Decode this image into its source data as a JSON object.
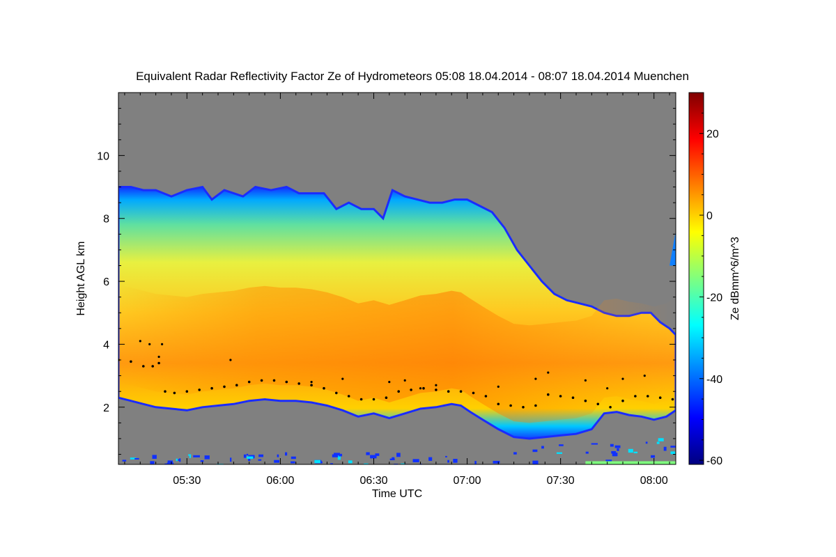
{
  "chart_data": {
    "type": "heatmap",
    "title": "Equivalent Radar Reflectivity Factor Ze of Hydrometeors   05:08 18.04.2014 - 08:07 18.04.2014 Muenchen",
    "xlabel": "Time UTC",
    "ylabel": "Height AGL km",
    "colorbar_label": "Ze dBmm^6/m^3",
    "x_range_minutes_utc": [
      308,
      487
    ],
    "x_ticks": [
      {
        "label": "05:30",
        "minutes": 330
      },
      {
        "label": "06:00",
        "minutes": 360
      },
      {
        "label": "06:30",
        "minutes": 390
      },
      {
        "label": "07:00",
        "minutes": 420
      },
      {
        "label": "07:30",
        "minutes": 450
      },
      {
        "label": "08:00",
        "minutes": 480
      }
    ],
    "y_range_km": [
      0.18,
      12.0
    ],
    "y_ticks": [
      {
        "label": "2",
        "value": 2
      },
      {
        "label": "4",
        "value": 4
      },
      {
        "label": "6",
        "value": 6
      },
      {
        "label": "8",
        "value": 8
      },
      {
        "label": "10",
        "value": 10
      }
    ],
    "colorbar_range": [
      -61,
      30
    ],
    "colorbar_ticks": [
      {
        "label": "20",
        "value": 20
      },
      {
        "label": "0",
        "value": 0
      },
      {
        "label": "-20",
        "value": -20
      },
      {
        "label": "-40",
        "value": -40
      },
      {
        "label": "-60",
        "value": -60
      }
    ],
    "colormap": [
      "#00007f",
      "#0000ff",
      "#007fff",
      "#00ffff",
      "#7fff7f",
      "#ffff00",
      "#ff7f00",
      "#ff0000",
      "#7f0000"
    ],
    "no_data_color": "#808080",
    "cloud_top_km": [
      [
        308,
        9.0
      ],
      [
        312,
        9.0
      ],
      [
        316,
        8.9
      ],
      [
        320,
        8.9
      ],
      [
        325,
        8.7
      ],
      [
        330,
        8.9
      ],
      [
        335,
        9.0
      ],
      [
        338,
        8.6
      ],
      [
        342,
        8.9
      ],
      [
        348,
        8.7
      ],
      [
        352,
        9.0
      ],
      [
        357,
        8.9
      ],
      [
        362,
        9.0
      ],
      [
        366,
        8.8
      ],
      [
        370,
        8.8
      ],
      [
        374,
        8.8
      ],
      [
        378,
        8.3
      ],
      [
        382,
        8.5
      ],
      [
        386,
        8.3
      ],
      [
        390,
        8.3
      ],
      [
        393,
        8.0
      ],
      [
        396,
        8.9
      ],
      [
        400,
        8.7
      ],
      [
        404,
        8.6
      ],
      [
        408,
        8.5
      ],
      [
        412,
        8.5
      ],
      [
        416,
        8.6
      ],
      [
        420,
        8.6
      ],
      [
        424,
        8.4
      ],
      [
        428,
        8.2
      ],
      [
        432,
        7.7
      ],
      [
        436,
        7.0
      ],
      [
        440,
        6.5
      ],
      [
        444,
        6.0
      ],
      [
        448,
        5.6
      ],
      [
        452,
        5.4
      ],
      [
        456,
        5.3
      ],
      [
        460,
        5.2
      ],
      [
        464,
        5.0
      ],
      [
        468,
        4.9
      ],
      [
        472,
        4.9
      ],
      [
        476,
        5.0
      ],
      [
        479,
        5.0
      ],
      [
        482,
        4.7
      ],
      [
        485,
        4.5
      ],
      [
        487,
        4.3
      ]
    ],
    "cloud_base_km": [
      [
        308,
        2.3
      ],
      [
        312,
        2.2
      ],
      [
        316,
        2.1
      ],
      [
        320,
        2.0
      ],
      [
        325,
        1.95
      ],
      [
        330,
        1.9
      ],
      [
        335,
        2.0
      ],
      [
        340,
        2.05
      ],
      [
        345,
        2.1
      ],
      [
        350,
        2.2
      ],
      [
        355,
        2.25
      ],
      [
        360,
        2.2
      ],
      [
        365,
        2.2
      ],
      [
        370,
        2.15
      ],
      [
        375,
        2.05
      ],
      [
        380,
        1.9
      ],
      [
        385,
        1.7
      ],
      [
        390,
        1.8
      ],
      [
        395,
        1.65
      ],
      [
        400,
        1.8
      ],
      [
        405,
        1.95
      ],
      [
        410,
        2.0
      ],
      [
        415,
        2.1
      ],
      [
        418,
        2.05
      ],
      [
        421,
        1.85
      ],
      [
        425,
        1.6
      ],
      [
        430,
        1.3
      ],
      [
        435,
        1.05
      ],
      [
        440,
        1.0
      ],
      [
        445,
        1.05
      ],
      [
        450,
        1.1
      ],
      [
        455,
        1.15
      ],
      [
        460,
        1.3
      ],
      [
        464,
        1.8
      ],
      [
        468,
        1.85
      ],
      [
        472,
        1.75
      ],
      [
        476,
        1.7
      ],
      [
        480,
        1.6
      ],
      [
        484,
        1.7
      ],
      [
        487,
        1.9
      ]
    ],
    "upper_cloud_patch": {
      "minutes_start": 485,
      "minutes_end": 487,
      "bottom_km": 6.5,
      "top_km": 7.6
    },
    "melting_layer_km": [
      [
        308,
        3.5
      ],
      [
        312,
        3.45
      ],
      [
        316,
        3.3
      ],
      [
        319,
        3.3
      ],
      [
        321,
        3.4
      ],
      [
        323,
        2.5
      ],
      [
        326,
        2.45
      ],
      [
        330,
        2.5
      ],
      [
        334,
        2.55
      ],
      [
        338,
        2.6
      ],
      [
        342,
        2.65
      ],
      [
        346,
        2.7
      ],
      [
        350,
        2.8
      ],
      [
        354,
        2.85
      ],
      [
        358,
        2.85
      ],
      [
        362,
        2.8
      ],
      [
        366,
        2.75
      ],
      [
        370,
        2.7
      ],
      [
        374,
        2.6
      ],
      [
        378,
        2.45
      ],
      [
        382,
        2.35
      ],
      [
        386,
        2.25
      ],
      [
        390,
        2.25
      ],
      [
        394,
        2.3
      ],
      [
        398,
        2.5
      ],
      [
        402,
        2.55
      ],
      [
        406,
        2.6
      ],
      [
        410,
        2.55
      ],
      [
        414,
        2.5
      ],
      [
        418,
        2.5
      ],
      [
        422,
        2.45
      ],
      [
        426,
        2.35
      ],
      [
        430,
        2.1
      ],
      [
        434,
        2.05
      ],
      [
        438,
        2.0
      ],
      [
        442,
        2.05
      ],
      [
        446,
        2.4
      ],
      [
        450,
        2.35
      ],
      [
        454,
        2.3
      ],
      [
        458,
        2.2
      ],
      [
        462,
        2.1
      ],
      [
        466,
        2.0
      ],
      [
        470,
        2.2
      ],
      [
        474,
        2.35
      ],
      [
        478,
        2.35
      ],
      [
        482,
        2.3
      ],
      [
        486,
        2.25
      ]
    ],
    "isolated_marks_km": [
      [
        315,
        4.1
      ],
      [
        318,
        4.0
      ],
      [
        322,
        4.0
      ],
      [
        321,
        3.6
      ],
      [
        344,
        3.5
      ],
      [
        370,
        2.8
      ],
      [
        380,
        2.9
      ],
      [
        395,
        2.8
      ],
      [
        400,
        2.85
      ],
      [
        405,
        2.6
      ],
      [
        410,
        2.7
      ],
      [
        430,
        2.65
      ],
      [
        442,
        2.9
      ],
      [
        446,
        3.1
      ],
      [
        458,
        2.85
      ],
      [
        465,
        2.6
      ],
      [
        470,
        2.9
      ],
      [
        477,
        3.0
      ]
    ],
    "ground_clutter_max_km": 0.9
  }
}
